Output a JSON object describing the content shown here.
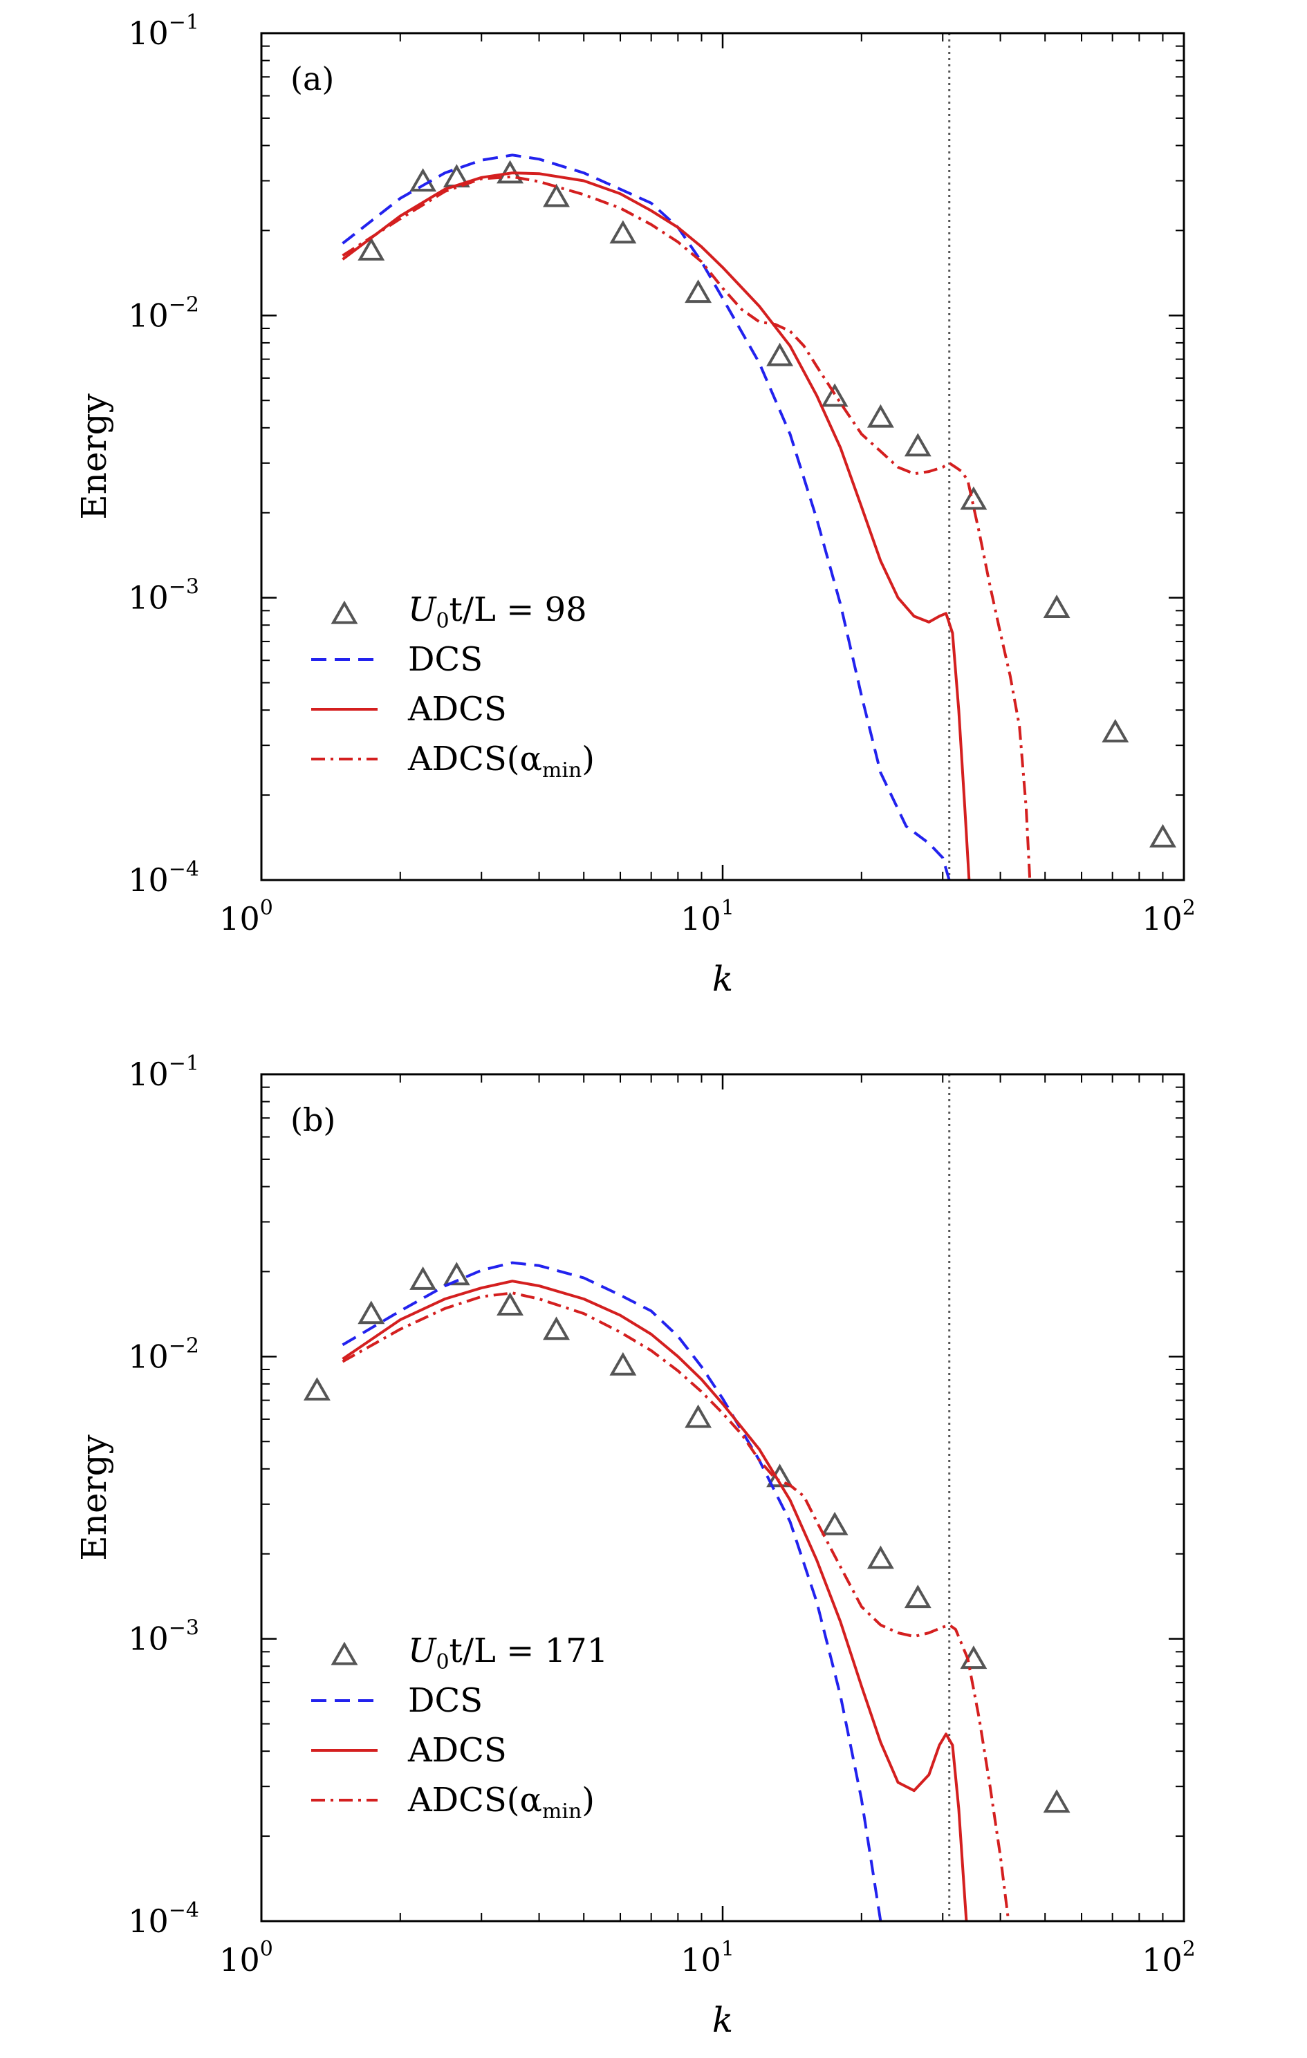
{
  "chart_data": [
    {
      "type": "line",
      "panel_label": "(a)",
      "xlabel": "k",
      "ylabel": "Energy",
      "xscale": "log",
      "yscale": "log",
      "xlim": [
        1,
        100
      ],
      "ylim": [
        0.0001,
        0.1
      ],
      "xticks": [
        {
          "base": "10",
          "exp": "0"
        },
        {
          "base": "10",
          "exp": "1"
        },
        {
          "base": "10",
          "exp": "2"
        }
      ],
      "yticks": [
        {
          "base": "10",
          "exp": "−4"
        },
        {
          "base": "10",
          "exp": "−3"
        },
        {
          "base": "10",
          "exp": "−2"
        },
        {
          "base": "10",
          "exp": "−1"
        }
      ],
      "grid": false,
      "legend_position": "lower-left",
      "cutoff_line_x": 31,
      "series": [
        {
          "name": "U0t/L = 98",
          "legend": {
            "main": "U",
            "sub": "0",
            "rest": "t/L = 98"
          },
          "style": "markers",
          "marker": "triangle",
          "color": "#555555",
          "x": [
            1.73,
            2.24,
            2.65,
            3.46,
            4.36,
            6.08,
            8.85,
            13.3,
            17.5,
            22.0,
            26.5,
            35.0,
            53.0,
            71.0,
            90.0
          ],
          "y": [
            0.0168,
            0.0295,
            0.0305,
            0.0315,
            0.026,
            0.0193,
            0.0119,
            0.0071,
            0.0051,
            0.0043,
            0.0034,
            0.0022,
            0.00091,
            0.00033,
            0.00014
          ]
        },
        {
          "name": "DCS",
          "style": "dashed",
          "color": "#2222ee",
          "x": [
            1.5,
            2.0,
            2.5,
            3.0,
            3.5,
            4.0,
            5.0,
            6.0,
            7.0,
            8.0,
            9.0,
            10.0,
            12.0,
            14.0,
            16.0,
            18.0,
            20.0,
            22.0,
            25.0,
            28.0,
            30.0,
            31.0,
            31.5
          ],
          "y": [
            0.018,
            0.026,
            0.032,
            0.0355,
            0.037,
            0.0358,
            0.032,
            0.028,
            0.025,
            0.0205,
            0.0155,
            0.0115,
            0.0068,
            0.0038,
            0.0019,
            0.00095,
            0.00045,
            0.00024,
            0.000155,
            0.000135,
            0.00012,
            0.0001,
            8e-05
          ]
        },
        {
          "name": "ADCS",
          "style": "solid",
          "color": "#d41f1f",
          "x": [
            1.5,
            2.0,
            2.5,
            3.0,
            3.5,
            4.0,
            5.0,
            6.0,
            7.0,
            8.0,
            9.0,
            10.0,
            12.0,
            14.0,
            16.0,
            18.0,
            20.0,
            22.0,
            24.0,
            26.0,
            28.0,
            29.5,
            30.5,
            31.5,
            32.5,
            33.5,
            34.5
          ],
          "y": [
            0.0158,
            0.0225,
            0.028,
            0.0308,
            0.032,
            0.0318,
            0.03,
            0.027,
            0.0235,
            0.0205,
            0.0175,
            0.0148,
            0.0108,
            0.0078,
            0.0052,
            0.0034,
            0.0021,
            0.00135,
            0.001,
            0.00086,
            0.00082,
            0.00086,
            0.00088,
            0.00075,
            0.0004,
            0.00018,
            8e-05
          ]
        },
        {
          "name": "ADCS(αmin)",
          "legend": {
            "main": "ADCS(α",
            "sub": "min",
            "rest": ")"
          },
          "style": "dashdot",
          "color": "#d41f1f",
          "x": [
            1.5,
            2.0,
            2.5,
            3.0,
            3.5,
            4.0,
            5.0,
            6.0,
            7.0,
            8.0,
            9.0,
            10.0,
            11.0,
            12.0,
            13.0,
            14.0,
            15.0,
            16.0,
            18.0,
            20.0,
            22.0,
            24.0,
            26.0,
            28.0,
            30.0,
            31.0,
            32.0,
            33.0,
            34.0,
            36.0,
            38.0,
            40.0,
            42.0,
            44.0,
            45.5,
            46.5
          ],
          "y": [
            0.0163,
            0.022,
            0.0275,
            0.0305,
            0.031,
            0.0298,
            0.0268,
            0.024,
            0.021,
            0.0182,
            0.0155,
            0.0125,
            0.0105,
            0.0095,
            0.0093,
            0.0088,
            0.0078,
            0.0066,
            0.0049,
            0.0038,
            0.0033,
            0.0029,
            0.00275,
            0.0028,
            0.0029,
            0.003,
            0.0029,
            0.0028,
            0.0026,
            0.0017,
            0.0011,
            0.00075,
            0.00053,
            0.00035,
            0.00018,
            9e-05
          ]
        }
      ]
    },
    {
      "type": "line",
      "panel_label": "(b)",
      "xlabel": "k",
      "ylabel": "Energy",
      "xscale": "log",
      "yscale": "log",
      "xlim": [
        1,
        100
      ],
      "ylim": [
        0.0001,
        0.1
      ],
      "xticks": [
        {
          "base": "10",
          "exp": "0"
        },
        {
          "base": "10",
          "exp": "1"
        },
        {
          "base": "10",
          "exp": "2"
        }
      ],
      "yticks": [
        {
          "base": "10",
          "exp": "−4"
        },
        {
          "base": "10",
          "exp": "−3"
        },
        {
          "base": "10",
          "exp": "−2"
        },
        {
          "base": "10",
          "exp": "−1"
        }
      ],
      "grid": false,
      "legend_position": "lower-left",
      "cutoff_line_x": 31,
      "series": [
        {
          "name": "U0t/L = 171",
          "legend": {
            "main": "U",
            "sub": "0",
            "rest": "t/L = 171"
          },
          "style": "markers",
          "marker": "triangle",
          "color": "#555555",
          "x": [
            1.32,
            1.73,
            2.24,
            2.65,
            3.46,
            4.36,
            6.08,
            8.85,
            13.3,
            17.5,
            22.0,
            26.5,
            35.0,
            53.0
          ],
          "y": [
            0.0075,
            0.014,
            0.0185,
            0.0192,
            0.015,
            0.0123,
            0.0092,
            0.006,
            0.0037,
            0.0025,
            0.0019,
            0.00138,
            0.00084,
            0.00026
          ]
        },
        {
          "name": "DCS",
          "style": "dashed",
          "color": "#2222ee",
          "x": [
            1.5,
            2.0,
            2.5,
            3.0,
            3.5,
            4.0,
            5.0,
            6.0,
            7.0,
            8.0,
            9.0,
            10.0,
            12.0,
            14.0,
            16.0,
            18.0,
            20.0,
            22.0
          ],
          "y": [
            0.011,
            0.0145,
            0.0178,
            0.0202,
            0.0215,
            0.021,
            0.019,
            0.0165,
            0.0145,
            0.0118,
            0.0092,
            0.0071,
            0.0043,
            0.0026,
            0.00135,
            0.00063,
            0.00027,
            0.0001
          ]
        },
        {
          "name": "ADCS",
          "style": "solid",
          "color": "#d41f1f",
          "x": [
            1.5,
            2.0,
            2.5,
            3.0,
            3.5,
            4.0,
            5.0,
            6.0,
            7.0,
            8.0,
            9.0,
            10.0,
            12.0,
            14.0,
            16.0,
            18.0,
            20.0,
            22.0,
            24.0,
            26.0,
            28.0,
            29.5,
            30.5,
            31.5,
            32.5,
            33.5,
            34.5
          ],
          "y": [
            0.0098,
            0.0135,
            0.016,
            0.0175,
            0.0185,
            0.0178,
            0.016,
            0.014,
            0.012,
            0.01,
            0.0083,
            0.0068,
            0.0047,
            0.0031,
            0.0019,
            0.00115,
            0.00068,
            0.00043,
            0.00031,
            0.00029,
            0.00033,
            0.00042,
            0.00046,
            0.00042,
            0.00025,
            0.00012,
            6e-05
          ]
        },
        {
          "name": "ADCS(αmin)",
          "legend": {
            "main": "ADCS(α",
            "sub": "min",
            "rest": ")"
          },
          "style": "dashdot",
          "color": "#d41f1f",
          "x": [
            1.5,
            2.0,
            2.5,
            3.0,
            3.5,
            4.0,
            5.0,
            6.0,
            7.0,
            8.0,
            9.0,
            10.0,
            11.0,
            12.0,
            13.0,
            14.0,
            15.0,
            16.0,
            18.0,
            20.0,
            22.0,
            24.0,
            26.0,
            28.0,
            30.0,
            31.0,
            32.0,
            34.0,
            36.0,
            38.0,
            40.0,
            42.0
          ],
          "y": [
            0.0096,
            0.0125,
            0.0148,
            0.0163,
            0.0168,
            0.016,
            0.0142,
            0.0122,
            0.0105,
            0.0089,
            0.0075,
            0.0063,
            0.0053,
            0.0043,
            0.0037,
            0.0035,
            0.0032,
            0.0026,
            0.0018,
            0.0013,
            0.00112,
            0.00105,
            0.00102,
            0.00105,
            0.0011,
            0.00112,
            0.00108,
            0.00085,
            0.00052,
            0.0003,
            0.00017,
            9e-05
          ]
        }
      ]
    }
  ]
}
